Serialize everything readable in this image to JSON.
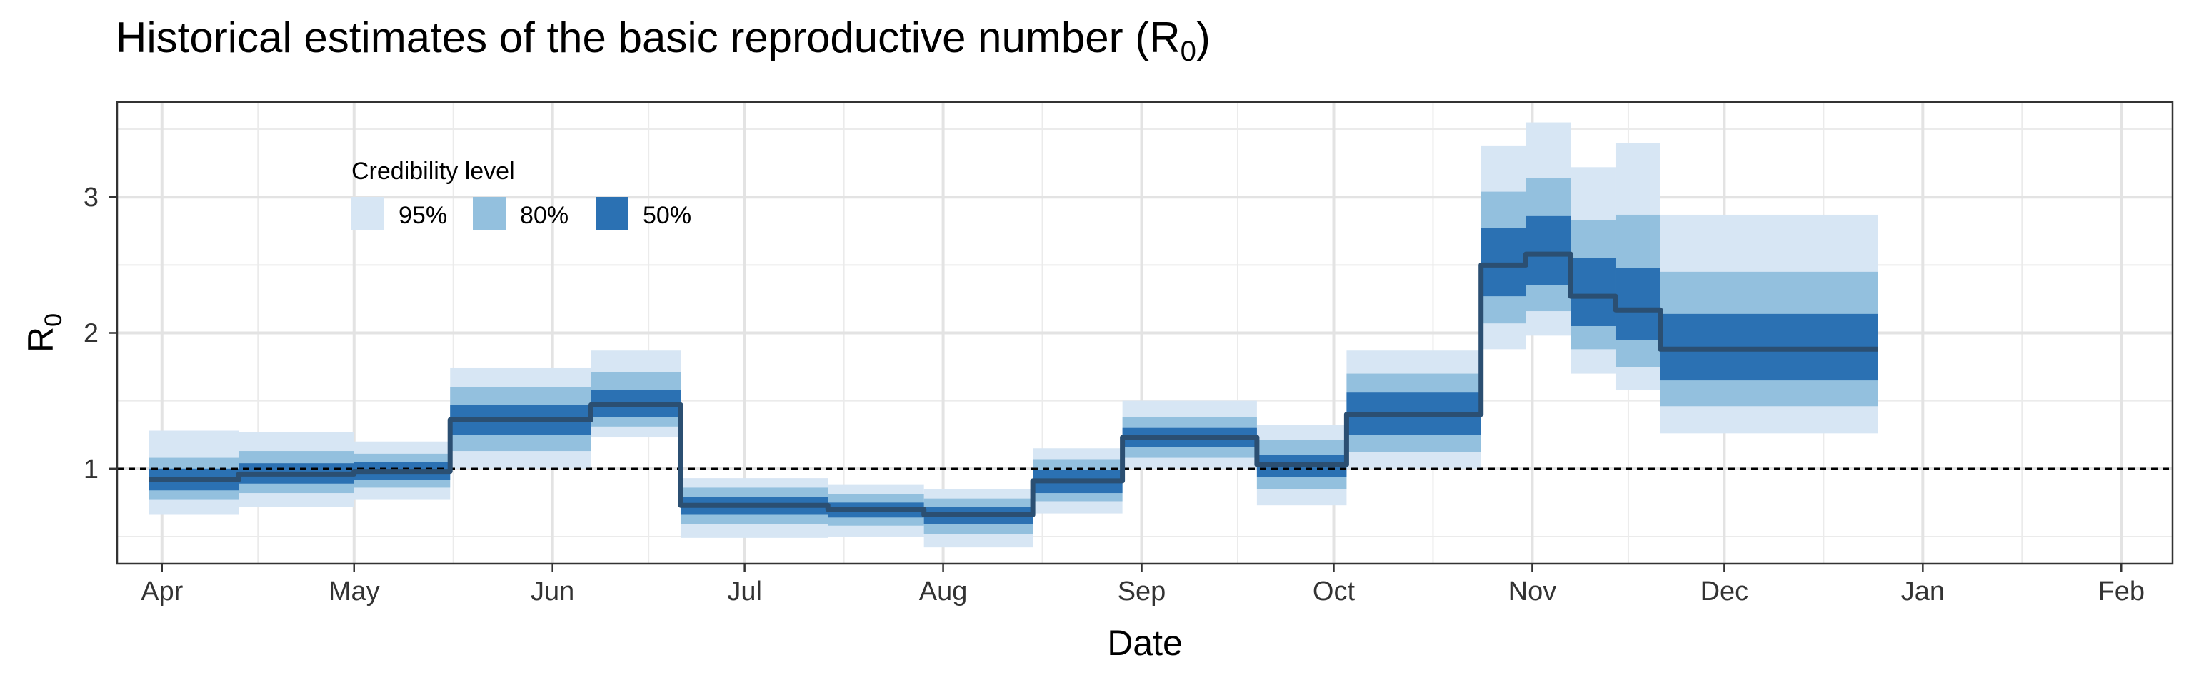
{
  "title": {
    "text": "Historical estimates of the basic reproductive number (R",
    "sub": "0",
    "close": ")"
  },
  "chart_data": {
    "type": "area",
    "xlabel": "Date",
    "ylabel": "R",
    "ylabel_sub": "0",
    "xlim": [
      "2020-03-25",
      "2021-02-09"
    ],
    "ylim": [
      0.3,
      3.7
    ],
    "x_ticks": [
      {
        "date": "2020-04-01",
        "label": "Apr"
      },
      {
        "date": "2020-05-01",
        "label": "May"
      },
      {
        "date": "2020-06-01",
        "label": "Jun"
      },
      {
        "date": "2020-07-01",
        "label": "Jul"
      },
      {
        "date": "2020-08-01",
        "label": "Aug"
      },
      {
        "date": "2020-09-01",
        "label": "Sep"
      },
      {
        "date": "2020-10-01",
        "label": "Oct"
      },
      {
        "date": "2020-11-01",
        "label": "Nov"
      },
      {
        "date": "2020-12-01",
        "label": "Dec"
      },
      {
        "date": "2021-01-01",
        "label": "Jan"
      },
      {
        "date": "2021-02-01",
        "label": "Feb"
      }
    ],
    "y_ticks": [
      1,
      2,
      3
    ],
    "reference_line": 1,
    "grid": true,
    "legend": {
      "title": "Credibility level",
      "position": "top-left",
      "items": [
        {
          "label": "95%",
          "color": "#d7e6f4"
        },
        {
          "label": "80%",
          "color": "#93c0de"
        },
        {
          "label": "50%",
          "color": "#2b71b3"
        }
      ]
    },
    "line_color": "#2b4f72",
    "reference_line_color": "#000000",
    "segments": [
      {
        "start": "2020-03-30",
        "end": "2020-04-13",
        "median": 0.92,
        "ci50": [
          0.84,
          1.0
        ],
        "ci80": [
          0.77,
          1.08
        ],
        "ci95": [
          0.66,
          1.28
        ]
      },
      {
        "start": "2020-04-13",
        "end": "2020-05-01",
        "median": 0.96,
        "ci50": [
          0.89,
          1.04
        ],
        "ci80": [
          0.82,
          1.13
        ],
        "ci95": [
          0.72,
          1.27
        ]
      },
      {
        "start": "2020-05-01",
        "end": "2020-05-16",
        "median": 0.98,
        "ci50": [
          0.92,
          1.05
        ],
        "ci80": [
          0.86,
          1.11
        ],
        "ci95": [
          0.77,
          1.2
        ]
      },
      {
        "start": "2020-05-16",
        "end": "2020-06-07",
        "median": 1.36,
        "ci50": [
          1.25,
          1.47
        ],
        "ci80": [
          1.13,
          1.6
        ],
        "ci95": [
          1.0,
          1.74
        ]
      },
      {
        "start": "2020-06-07",
        "end": "2020-06-21",
        "median": 1.47,
        "ci50": [
          1.38,
          1.58
        ],
        "ci80": [
          1.31,
          1.71
        ],
        "ci95": [
          1.23,
          1.87
        ]
      },
      {
        "start": "2020-06-21",
        "end": "2020-07-14",
        "median": 0.73,
        "ci50": [
          0.66,
          0.79
        ],
        "ci80": [
          0.59,
          0.86
        ],
        "ci95": [
          0.49,
          0.93
        ]
      },
      {
        "start": "2020-07-14",
        "end": "2020-07-29",
        "median": 0.7,
        "ci50": [
          0.64,
          0.75
        ],
        "ci80": [
          0.58,
          0.81
        ],
        "ci95": [
          0.5,
          0.88
        ]
      },
      {
        "start": "2020-07-29",
        "end": "2020-08-15",
        "median": 0.66,
        "ci50": [
          0.59,
          0.72
        ],
        "ci80": [
          0.52,
          0.78
        ],
        "ci95": [
          0.42,
          0.85
        ]
      },
      {
        "start": "2020-08-15",
        "end": "2020-08-29",
        "median": 0.91,
        "ci50": [
          0.82,
          0.99
        ],
        "ci80": [
          0.76,
          1.07
        ],
        "ci95": [
          0.67,
          1.15
        ]
      },
      {
        "start": "2020-08-29",
        "end": "2020-09-19",
        "median": 1.23,
        "ci50": [
          1.16,
          1.3
        ],
        "ci80": [
          1.08,
          1.38
        ],
        "ci95": [
          1.0,
          1.5
        ]
      },
      {
        "start": "2020-09-19",
        "end": "2020-10-03",
        "median": 1.03,
        "ci50": [
          0.94,
          1.1
        ],
        "ci80": [
          0.85,
          1.21
        ],
        "ci95": [
          0.73,
          1.32
        ]
      },
      {
        "start": "2020-10-03",
        "end": "2020-10-24",
        "median": 1.4,
        "ci50": [
          1.25,
          1.56
        ],
        "ci80": [
          1.12,
          1.7
        ],
        "ci95": [
          1.0,
          1.87
        ]
      },
      {
        "start": "2020-10-24",
        "end": "2020-10-31",
        "median": 2.5,
        "ci50": [
          2.27,
          2.77
        ],
        "ci80": [
          2.07,
          3.04
        ],
        "ci95": [
          1.88,
          3.38
        ]
      },
      {
        "start": "2020-10-31",
        "end": "2020-11-07",
        "median": 2.58,
        "ci50": [
          2.35,
          2.86
        ],
        "ci80": [
          2.16,
          3.14
        ],
        "ci95": [
          1.98,
          3.55
        ]
      },
      {
        "start": "2020-11-07",
        "end": "2020-11-14",
        "median": 2.27,
        "ci50": [
          2.05,
          2.55
        ],
        "ci80": [
          1.88,
          2.83
        ],
        "ci95": [
          1.7,
          3.22
        ]
      },
      {
        "start": "2020-11-14",
        "end": "2020-11-21",
        "median": 2.17,
        "ci50": [
          1.95,
          2.48
        ],
        "ci80": [
          1.75,
          2.87
        ],
        "ci95": [
          1.58,
          3.4
        ]
      },
      {
        "start": "2020-11-21",
        "end": "2020-12-25",
        "median": 1.88,
        "ci50": [
          1.65,
          2.14
        ],
        "ci80": [
          1.46,
          2.45
        ],
        "ci95": [
          1.26,
          2.87
        ]
      }
    ]
  }
}
